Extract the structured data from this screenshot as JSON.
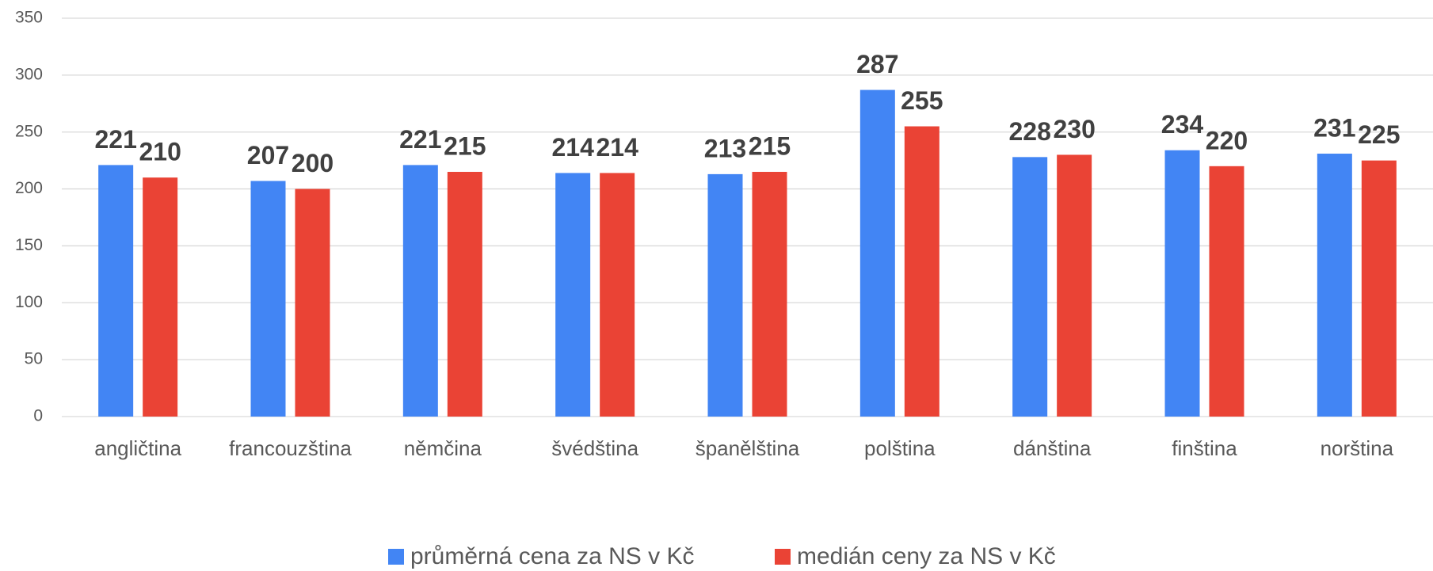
{
  "chart_data": {
    "type": "bar",
    "categories": [
      "angličtina",
      "francouzština",
      "němčina",
      "švédština",
      "španělština",
      "polština",
      "dánština",
      "finština",
      "norština"
    ],
    "series": [
      {
        "name": "průměrná cena za NS v Kč",
        "color": "#4285f4",
        "values": [
          221,
          207,
          221,
          214,
          213,
          287,
          228,
          234,
          231
        ]
      },
      {
        "name": "medián ceny za NS v Kč",
        "color": "#ea4335",
        "values": [
          210,
          200,
          215,
          214,
          215,
          255,
          230,
          220,
          225
        ]
      }
    ],
    "ylim": [
      0,
      350
    ],
    "yticks": [
      0,
      50,
      100,
      150,
      200,
      250,
      300,
      350
    ],
    "grid": true,
    "legend": "bottom"
  }
}
